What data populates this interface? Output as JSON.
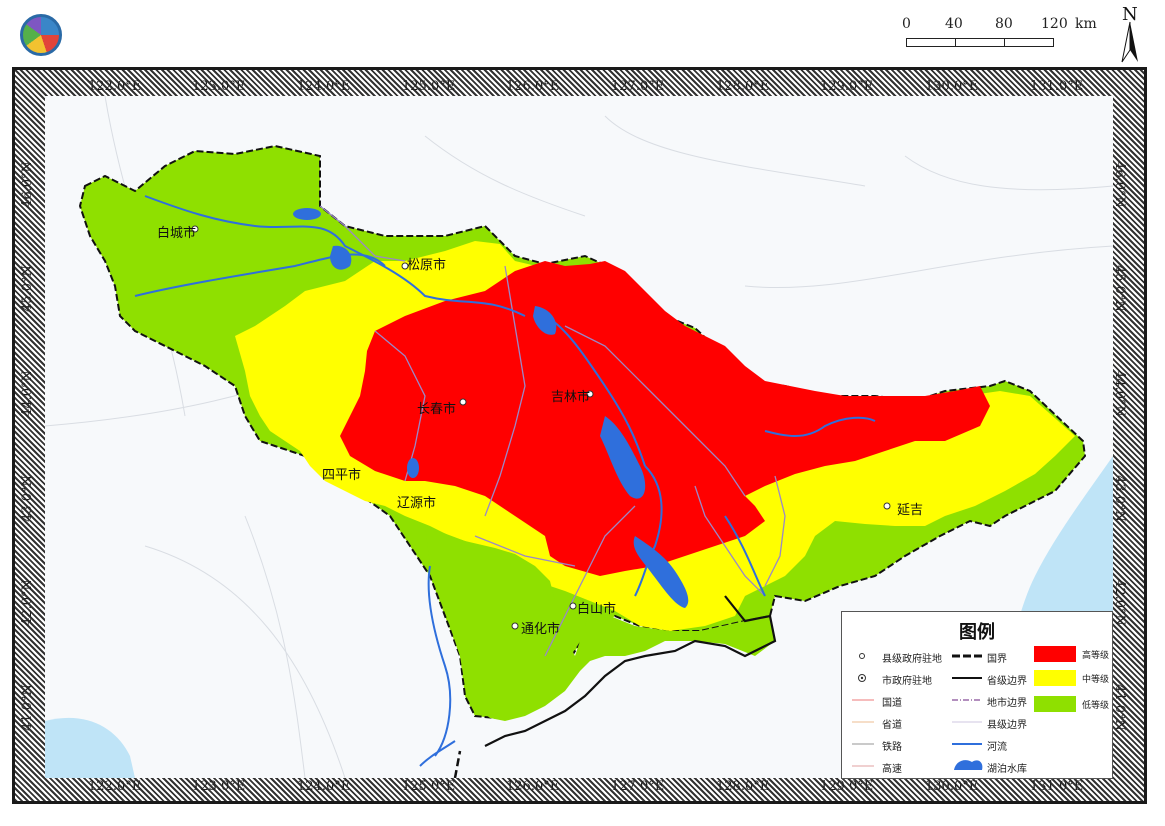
{
  "scale": {
    "ticks": [
      "0",
      "40",
      "80",
      "120"
    ],
    "unit": "km"
  },
  "north_label": "N",
  "lon_labels": [
    "122.0°E",
    "123.0°E",
    "124.0°E",
    "125.0°E",
    "126.0°E",
    "127.0°E",
    "128.0°E",
    "129.0°E",
    "130.0°E",
    "131.0°E"
  ],
  "lat_labels": [
    "46.0°N",
    "45.0°N",
    "44.0°N",
    "43.0°N",
    "42.0°N",
    "41.0°N"
  ],
  "cities": {
    "baicheng": "白城市",
    "songyuan": "松原市",
    "changchun": "长春市",
    "jilin": "吉林市",
    "siping": "四平市",
    "liaoyuan": "辽源市",
    "yanji": "延吉",
    "baishan": "白山市",
    "tonghua": "通化市"
  },
  "legend": {
    "title": "图例",
    "county_seat": "县级政府驻地",
    "city_seat": "市政府驻地",
    "national_road": "国道",
    "provincial_road": "省道",
    "railway": "铁路",
    "highway": "高速",
    "national_border": "国界",
    "provincial_border": "省级边界",
    "city_border": "地市边界",
    "county_border": "县级边界",
    "river": "河流",
    "lake": "湖泊水库",
    "high": "高等级",
    "medium": "中等级",
    "low": "低等级"
  },
  "colors": {
    "high": "#ff0000",
    "medium": "#ffff00",
    "low": "#8fe000",
    "water": "#2f6fdc",
    "sea": "#bfe4f7"
  }
}
